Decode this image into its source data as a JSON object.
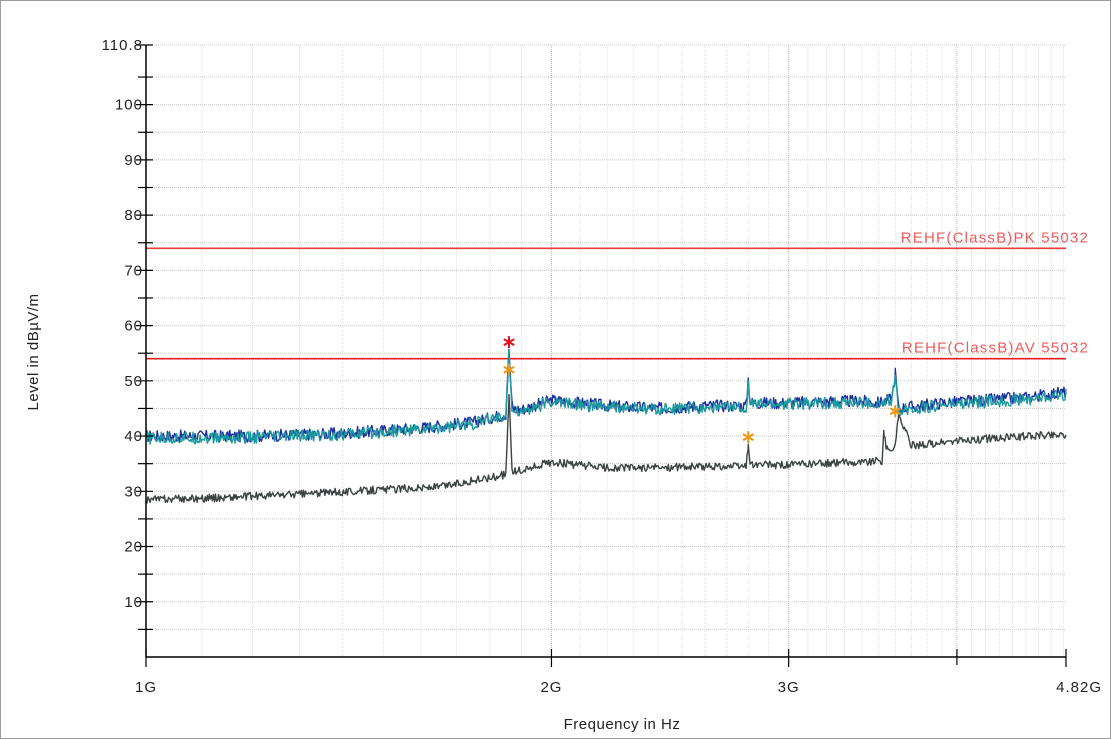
{
  "chart_data": {
    "type": "line",
    "xlabel": "Frequency in Hz",
    "ylabel": "Level in dBµV/m",
    "xscale": "log",
    "xlim": [
      1000000000,
      4820000000
    ],
    "ylim": [
      0,
      110.8
    ],
    "grid": true,
    "y_ticks": [
      {
        "value": 110.8,
        "label": "110.8"
      },
      {
        "value": 100,
        "label": "100"
      },
      {
        "value": 90,
        "label": "90"
      },
      {
        "value": 80,
        "label": "80"
      },
      {
        "value": 70,
        "label": "70"
      },
      {
        "value": 60,
        "label": "60"
      },
      {
        "value": 50,
        "label": "50"
      },
      {
        "value": 40,
        "label": "40"
      },
      {
        "value": 30,
        "label": "30"
      },
      {
        "value": 20,
        "label": "20"
      },
      {
        "value": 10,
        "label": "10"
      }
    ],
    "x_ticks": [
      {
        "value": 1000000000,
        "label": "1G"
      },
      {
        "value": 2000000000,
        "label": "2G"
      },
      {
        "value": 3000000000,
        "label": "3G"
      },
      {
        "value": 4820000000,
        "label": "4.82G"
      }
    ],
    "limit_lines": [
      {
        "name": "REHF(ClassB)PK 55032",
        "value": 74,
        "color": "#e83a3a",
        "label_color": "#ef6a6a"
      },
      {
        "name": "REHF(ClassB)AV 55032",
        "value": 54,
        "color": "#e81c1c",
        "label_color": "#e03030"
      }
    ],
    "series": [
      {
        "color": "#1c2e9e",
        "x": [
          1000000000,
          1200000000,
          1400000000,
          1600000000,
          1750000000,
          1850000000,
          1860000000,
          1870000000,
          1900000000,
          2000000000,
          2200000000,
          2400000000,
          2600000000,
          2790000000,
          2800000000,
          2810000000,
          3000000000,
          3200000000,
          3400000000,
          3500000000,
          3580000000,
          3600000000,
          3620000000,
          3700000000,
          3900000000,
          4200000000,
          4500000000,
          4820000000
        ],
        "y": [
          40,
          40,
          40.5,
          41.5,
          42.5,
          44,
          55.5,
          45,
          44.8,
          46.5,
          45.5,
          45,
          45.5,
          45.5,
          50.5,
          46,
          46,
          46.3,
          46.3,
          46,
          46.8,
          51.5,
          45,
          45.3,
          46,
          46.5,
          47,
          48
        ]
      },
      {
        "color": "#1a9a9e",
        "x": [
          1000000000,
          1200000000,
          1400000000,
          1600000000,
          1750000000,
          1850000000,
          1860000000,
          1870000000,
          1900000000,
          2000000000,
          2200000000,
          2400000000,
          2600000000,
          2790000000,
          2800000000,
          2810000000,
          3000000000,
          3200000000,
          3400000000,
          3500000000,
          3580000000,
          3600000000,
          3620000000,
          3700000000,
          3900000000,
          4200000000,
          4500000000,
          4820000000
        ],
        "y": [
          39.6,
          39.7,
          40.3,
          41.2,
          42.2,
          43.8,
          55,
          44.8,
          44.5,
          46.2,
          45.2,
          44.8,
          45.2,
          45.2,
          49.8,
          45.7,
          45.8,
          46,
          46,
          45.7,
          46.4,
          51,
          44.7,
          45,
          45.6,
          46.2,
          46.6,
          47.6
        ]
      },
      {
        "color": "#3d4242",
        "x": [
          1000000000,
          1100000000,
          1300000000,
          1500000000,
          1650000000,
          1800000000,
          1850000000,
          1860000000,
          1870000000,
          1900000000,
          2000000000,
          2200000000,
          2400000000,
          2600000000,
          2790000000,
          2800000000,
          2810000000,
          3000000000,
          3200000000,
          3400000000,
          3520000000,
          3530000000,
          3545000000,
          3600000000,
          3620000000,
          3700000000,
          3900000000,
          4200000000,
          4500000000,
          4820000000
        ],
        "y": [
          28.5,
          28.7,
          29.5,
          30.3,
          30.8,
          32.5,
          33,
          47.5,
          33.5,
          33.8,
          35.3,
          34.2,
          34.3,
          34.5,
          34.5,
          38.5,
          34.8,
          34.8,
          35.1,
          35.3,
          35.5,
          41,
          37.5,
          38,
          44,
          38.3,
          38.8,
          39.5,
          40,
          40.3
        ]
      }
    ],
    "markers": [
      {
        "x": 1860000000,
        "y": 57,
        "color": "#e8101e"
      },
      {
        "x": 1860000000,
        "y": 52,
        "color": "#f29410"
      },
      {
        "x": 2800000000,
        "y": 39.8,
        "color": "#f29410"
      },
      {
        "x": 3600000000,
        "y": 44.5,
        "color": "#f29410"
      }
    ]
  }
}
